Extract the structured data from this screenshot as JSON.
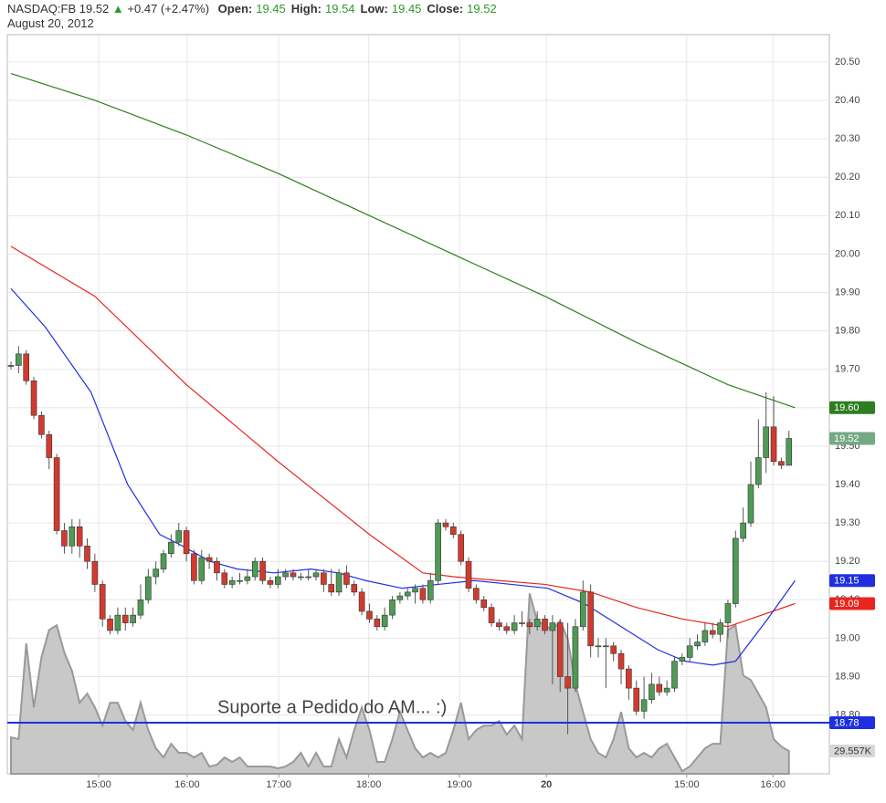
{
  "header": {
    "symbol": "NASDAQ:FB",
    "last": "19.52",
    "change": "+0.47 (+2.47%)",
    "quote": [
      {
        "label": "Open:",
        "value": "19.45"
      },
      {
        "label": "High:",
        "value": "19.54"
      },
      {
        "label": "Low:",
        "value": "19.45"
      },
      {
        "label": "Close:",
        "value": "19.52"
      }
    ],
    "date": "August 20, 2012"
  },
  "chart_data": {
    "type": "candlestick",
    "xlim": [
      -0.48,
      107.3
    ],
    "xticks": [
      {
        "value": 11.5,
        "label": "15:00"
      },
      {
        "value": 23.1,
        "label": "16:00"
      },
      {
        "value": 35.1,
        "label": "17:00"
      },
      {
        "value": 46.9,
        "label": "18:00"
      },
      {
        "value": 58.8,
        "label": "19:00"
      },
      {
        "value": 70.2,
        "label": "20"
      },
      {
        "value": 88.6,
        "label": "15:00"
      },
      {
        "value": 99.9,
        "label": "16:00"
      }
    ],
    "ylim": [
      18.647,
      20.571
    ],
    "yticks": [
      {
        "value": 18.8,
        "label": "18.80"
      },
      {
        "value": 18.9,
        "label": "18.90"
      },
      {
        "value": 19.0,
        "label": "19.00"
      },
      {
        "value": 19.1,
        "label": "19.10"
      },
      {
        "value": 19.2,
        "label": "19.20"
      },
      {
        "value": 19.3,
        "label": "19.30"
      },
      {
        "value": 19.4,
        "label": "19.40"
      },
      {
        "value": 19.5,
        "label": "19.50"
      },
      {
        "value": 19.6,
        "label": "19.60"
      },
      {
        "value": 19.7,
        "label": "19.70"
      },
      {
        "value": 19.8,
        "label": "19.80"
      },
      {
        "value": 19.9,
        "label": "19.90"
      },
      {
        "value": 20.0,
        "label": "20.00"
      },
      {
        "value": 20.1,
        "label": "20.10"
      },
      {
        "value": 20.2,
        "label": "20.20"
      },
      {
        "value": 20.3,
        "label": "20.30"
      },
      {
        "value": 20.4,
        "label": "20.40"
      },
      {
        "value": 20.5,
        "label": "20.50"
      }
    ],
    "y2lim": [
      0,
      960000
    ],
    "grid": true,
    "up_color": "#4f9a55",
    "down_color": "#d33a2f",
    "candles": [
      [
        19.71,
        19.72,
        19.7,
        19.71
      ],
      [
        19.71,
        19.76,
        19.69,
        19.74
      ],
      [
        19.74,
        19.75,
        19.66,
        19.67
      ],
      [
        19.67,
        19.68,
        19.57,
        19.58
      ],
      [
        19.58,
        19.59,
        19.52,
        19.53
      ],
      [
        19.53,
        19.54,
        19.44,
        19.47
      ],
      [
        19.47,
        19.48,
        19.27,
        19.28
      ],
      [
        19.28,
        19.3,
        19.22,
        19.24
      ],
      [
        19.24,
        19.31,
        19.22,
        19.29
      ],
      [
        19.29,
        19.31,
        19.21,
        19.24
      ],
      [
        19.24,
        19.26,
        19.18,
        19.2
      ],
      [
        19.2,
        19.22,
        19.12,
        19.14
      ],
      [
        19.14,
        19.15,
        19.03,
        19.05
      ],
      [
        19.05,
        19.06,
        19.01,
        19.02
      ],
      [
        19.02,
        19.08,
        19.01,
        19.06
      ],
      [
        19.06,
        19.08,
        19.02,
        19.04
      ],
      [
        19.04,
        19.08,
        19.03,
        19.06
      ],
      [
        19.06,
        19.14,
        19.05,
        19.1
      ],
      [
        19.1,
        19.18,
        19.09,
        19.16
      ],
      [
        19.16,
        19.2,
        19.14,
        19.18
      ],
      [
        19.18,
        19.23,
        19.17,
        19.22
      ],
      [
        19.22,
        19.27,
        19.21,
        19.25
      ],
      [
        19.25,
        19.3,
        19.24,
        19.28
      ],
      [
        19.28,
        19.29,
        19.2,
        19.22
      ],
      [
        19.22,
        19.23,
        19.14,
        19.15
      ],
      [
        19.15,
        19.23,
        19.14,
        19.21
      ],
      [
        19.21,
        19.22,
        19.18,
        19.2
      ],
      [
        19.2,
        19.21,
        19.15,
        19.17
      ],
      [
        19.17,
        19.18,
        19.13,
        19.14
      ],
      [
        19.14,
        19.16,
        19.13,
        19.15
      ],
      [
        19.15,
        19.17,
        19.14,
        19.15
      ],
      [
        19.15,
        19.18,
        19.14,
        19.16
      ],
      [
        19.16,
        19.21,
        19.15,
        19.2
      ],
      [
        19.2,
        19.21,
        19.14,
        19.15
      ],
      [
        19.15,
        19.16,
        19.13,
        19.14
      ],
      [
        19.14,
        19.18,
        19.13,
        19.16
      ],
      [
        19.16,
        19.18,
        19.15,
        19.17
      ],
      [
        19.17,
        19.18,
        19.15,
        19.16
      ],
      [
        19.16,
        19.17,
        19.15,
        19.16
      ],
      [
        19.16,
        19.18,
        19.15,
        19.16
      ],
      [
        19.16,
        19.18,
        19.15,
        19.17
      ],
      [
        19.17,
        19.18,
        19.12,
        19.14
      ],
      [
        19.14,
        19.18,
        19.11,
        19.12
      ],
      [
        19.12,
        19.18,
        19.11,
        19.17
      ],
      [
        19.17,
        19.19,
        19.13,
        19.14
      ],
      [
        19.14,
        19.15,
        19.11,
        19.12
      ],
      [
        19.12,
        19.13,
        19.06,
        19.07
      ],
      [
        19.07,
        19.09,
        19.04,
        19.05
      ],
      [
        19.05,
        19.06,
        19.02,
        19.03
      ],
      [
        19.03,
        19.08,
        19.02,
        19.06
      ],
      [
        19.06,
        19.11,
        19.05,
        19.1
      ],
      [
        19.1,
        19.12,
        19.09,
        19.11
      ],
      [
        19.11,
        19.13,
        19.1,
        19.12
      ],
      [
        19.12,
        19.14,
        19.09,
        19.13
      ],
      [
        19.13,
        19.14,
        19.09,
        19.1
      ],
      [
        19.1,
        19.17,
        19.09,
        19.15
      ],
      [
        19.15,
        19.31,
        19.14,
        19.3
      ],
      [
        19.3,
        19.31,
        19.28,
        19.29
      ],
      [
        19.29,
        19.3,
        19.26,
        19.27
      ],
      [
        19.27,
        19.28,
        19.19,
        19.2
      ],
      [
        19.2,
        19.21,
        19.12,
        19.13
      ],
      [
        19.13,
        19.14,
        19.09,
        19.1
      ],
      [
        19.1,
        19.11,
        19.07,
        19.08
      ],
      [
        19.08,
        19.09,
        19.03,
        19.04
      ],
      [
        19.04,
        19.05,
        19.02,
        19.03
      ],
      [
        19.03,
        19.04,
        19.01,
        19.02
      ],
      [
        19.02,
        19.06,
        19.01,
        19.04
      ],
      [
        19.04,
        19.07,
        19.03,
        19.04
      ],
      [
        19.04,
        19.05,
        19.01,
        19.03
      ],
      [
        19.03,
        19.07,
        19.02,
        19.05
      ],
      [
        19.05,
        19.06,
        19.01,
        19.02
      ],
      [
        19.02,
        19.06,
        18.88,
        19.04
      ],
      [
        19.04,
        19.05,
        18.86,
        18.9
      ],
      [
        18.9,
        19.04,
        18.75,
        18.87
      ],
      [
        18.87,
        19.05,
        18.86,
        19.03
      ],
      [
        19.03,
        19.15,
        19.02,
        19.12
      ],
      [
        19.12,
        19.14,
        18.95,
        18.98
      ],
      [
        18.98,
        19.0,
        18.95,
        18.98
      ],
      [
        18.98,
        19.0,
        18.87,
        18.98
      ],
      [
        18.98,
        18.99,
        18.94,
        18.96
      ],
      [
        18.96,
        18.97,
        18.88,
        18.92
      ],
      [
        18.92,
        18.93,
        18.84,
        18.87
      ],
      [
        18.87,
        18.89,
        18.8,
        18.81
      ],
      [
        18.81,
        18.9,
        18.79,
        18.84
      ],
      [
        18.84,
        18.91,
        18.83,
        18.88
      ],
      [
        18.88,
        18.9,
        18.85,
        18.86
      ],
      [
        18.86,
        18.89,
        18.85,
        18.87
      ],
      [
        18.87,
        18.95,
        18.86,
        18.94
      ],
      [
        18.94,
        18.96,
        18.93,
        18.95
      ],
      [
        18.95,
        19.0,
        18.94,
        18.98
      ],
      [
        18.98,
        19.01,
        18.97,
        18.99
      ],
      [
        18.99,
        19.04,
        18.98,
        19.02
      ],
      [
        19.02,
        19.04,
        19.0,
        19.01
      ],
      [
        19.01,
        19.05,
        18.99,
        19.04
      ],
      [
        19.04,
        19.1,
        19.0,
        19.09
      ],
      [
        19.09,
        19.28,
        19.08,
        19.26
      ],
      [
        19.26,
        19.34,
        19.25,
        19.3
      ],
      [
        19.3,
        19.46,
        19.29,
        19.4
      ],
      [
        19.4,
        19.57,
        19.39,
        19.47
      ],
      [
        19.47,
        19.64,
        19.43,
        19.55
      ],
      [
        19.55,
        19.63,
        19.45,
        19.46
      ],
      [
        19.46,
        19.47,
        19.44,
        19.45
      ],
      [
        19.45,
        19.54,
        19.45,
        19.52
      ]
    ],
    "volume": {
      "color": "#c8c8c8",
      "values": [
        47300,
        45000,
        169200,
        86400,
        151400,
        186900,
        192800,
        157300,
        133700,
        92300,
        104100,
        86400,
        62700,
        92300,
        92300,
        68600,
        56800,
        92300,
        56800,
        33100,
        21300,
        39000,
        27200,
        27200,
        21300,
        27200,
        9500,
        11800,
        21300,
        15400,
        21300,
        9500,
        9500,
        9500,
        9500,
        7100,
        9500,
        15400,
        27200,
        9500,
        27200,
        9500,
        9500,
        45000,
        21300,
        56800,
        86400,
        56800,
        15400,
        15400,
        45000,
        80400,
        56800,
        33100,
        21300,
        27200,
        21300,
        27200,
        56800,
        92300,
        45000,
        56800,
        62700,
        62700,
        68600,
        50900,
        62700,
        45000,
        234200,
        198700,
        192800,
        186900,
        198700,
        175100,
        115900,
        80400,
        45000,
        27200,
        21300,
        45000,
        80400,
        33100,
        21300,
        27200,
        21300,
        33100,
        39000,
        21300,
        3500,
        9500,
        21300,
        33100,
        39000,
        39000,
        186900,
        192800,
        127800,
        121800,
        104100,
        86400,
        45000,
        35500,
        29557
      ]
    },
    "series": [
      {
        "color": "#2e7d1f",
        "x": [
          0,
          11,
          23,
          35,
          47,
          59,
          70,
          82,
          94,
          102.8
        ],
        "values": [
          20.47,
          20.4,
          20.31,
          20.21,
          20.1,
          19.99,
          19.89,
          19.77,
          19.66,
          19.6
        ]
      },
      {
        "color": "#e8251f",
        "x": [
          0,
          11,
          23,
          35,
          47,
          54,
          58,
          64,
          70,
          76,
          82,
          88,
          94,
          102.8
        ],
        "values": [
          20.02,
          19.89,
          19.66,
          19.46,
          19.27,
          19.17,
          19.16,
          19.15,
          19.14,
          19.12,
          19.08,
          19.05,
          19.03,
          19.09
        ]
      },
      {
        "color": "#1f2fe0",
        "x": [
          0,
          4.5,
          10.5,
          15.3,
          19.5,
          22.5,
          26.1,
          29.7,
          34.5,
          39.3,
          42.9,
          46.5,
          51.3,
          56,
          60.8,
          65.6,
          70.4,
          75.2,
          80,
          84.8,
          88.4,
          92,
          95,
          99.2,
          102.8
        ],
        "values": [
          19.91,
          19.81,
          19.64,
          19.4,
          19.27,
          19.24,
          19.2,
          19.18,
          19.17,
          19.18,
          19.17,
          19.15,
          19.13,
          19.14,
          19.15,
          19.14,
          19.13,
          19.09,
          19.03,
          18.97,
          18.94,
          18.93,
          18.94,
          19.05,
          19.15
        ]
      }
    ],
    "hline": {
      "value": 18.78,
      "color": "#1f2fe0",
      "label": "Suporte a Pedido do AM... :)"
    },
    "tags": [
      {
        "value": 19.6,
        "label": "19.60",
        "color": "#2e7d1f"
      },
      {
        "value": 19.52,
        "label": "19.52",
        "color": "#74a985"
      },
      {
        "value": 19.15,
        "label": "19.15",
        "color": "#1f2fe0"
      },
      {
        "value": 19.09,
        "label": "19.09",
        "color": "#e8251f"
      },
      {
        "value": 18.78,
        "label": "18.78",
        "color": "#1f2fe0"
      },
      {
        "value": 29557,
        "label": "29.557K",
        "color": "#d8d8d8",
        "axis": "y2"
      }
    ]
  }
}
